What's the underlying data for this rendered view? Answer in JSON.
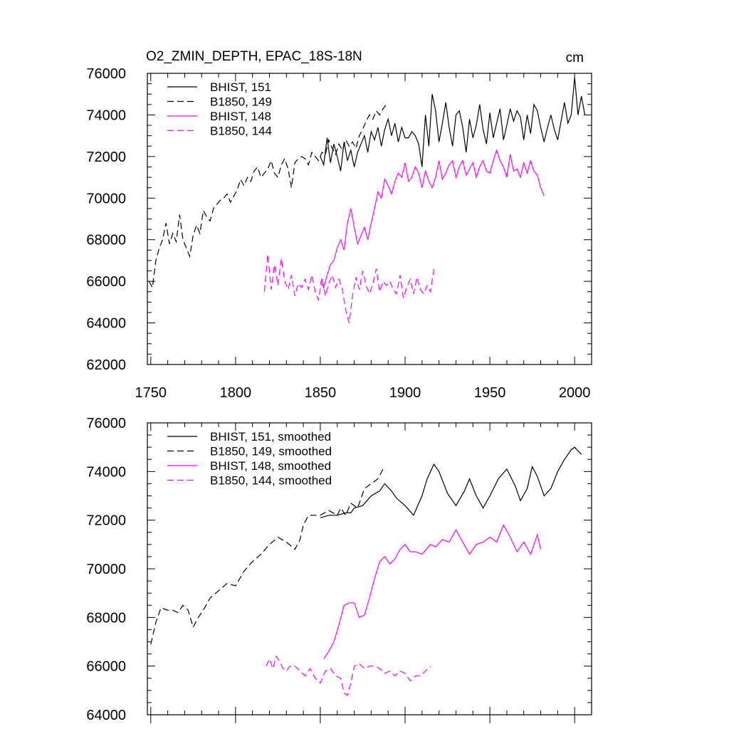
{
  "chart_data": [
    {
      "type": "line",
      "title": "O2_ZMIN_DEPTH, EPAC_18S-18N",
      "units": "cm",
      "xlim": [
        1748,
        2010
      ],
      "ylim": [
        62000,
        76000
      ],
      "x_ticks": [
        1750,
        1800,
        1850,
        1900,
        1950,
        2000
      ],
      "x_tick_labels": [
        "1750",
        "1800",
        "1850",
        "1900",
        "1950",
        "2000"
      ],
      "y_ticks": [
        62000,
        64000,
        66000,
        68000,
        70000,
        72000,
        74000,
        76000
      ],
      "y_tick_labels": [
        "62000",
        "64000",
        "66000",
        "68000",
        "70000",
        "72000",
        "74000",
        "76000"
      ],
      "legend": [
        "BHIST, 151",
        "B1850, 149",
        "BHIST, 148",
        "B1850, 144"
      ],
      "series": [
        {
          "name": "BHIST, 151",
          "color": "#000000",
          "dashed": false,
          "x": [
            1850,
            1852,
            1854,
            1856,
            1858,
            1860,
            1862,
            1864,
            1866,
            1868,
            1870,
            1872,
            1874,
            1876,
            1878,
            1880,
            1882,
            1884,
            1886,
            1888,
            1890,
            1892,
            1894,
            1896,
            1898,
            1900,
            1902,
            1904,
            1906,
            1908,
            1910,
            1912,
            1914,
            1916,
            1918,
            1920,
            1922,
            1924,
            1926,
            1928,
            1930,
            1932,
            1934,
            1936,
            1938,
            1940,
            1942,
            1944,
            1946,
            1948,
            1950,
            1952,
            1954,
            1956,
            1958,
            1960,
            1962,
            1964,
            1966,
            1968,
            1970,
            1972,
            1974,
            1976,
            1978,
            1980,
            1982,
            1984,
            1986,
            1988,
            1990,
            1992,
            1994,
            1996,
            1998,
            2000,
            2002,
            2004,
            2006
          ],
          "values": [
            72000,
            71600,
            72900,
            71700,
            72600,
            72000,
            71300,
            72700,
            71800,
            72300,
            71500,
            72200,
            72600,
            73000,
            72200,
            73200,
            72800,
            73400,
            72500,
            73300,
            73800,
            73000,
            73600,
            72700,
            73400,
            72900,
            72900,
            73200,
            73000,
            72600,
            71500,
            74000,
            72500,
            75000,
            74200,
            72700,
            73600,
            74600,
            73400,
            72500,
            74000,
            74200,
            73400,
            72200,
            73800,
            72900,
            73500,
            74500,
            73300,
            72600,
            74100,
            72900,
            73600,
            74300,
            72800,
            73500,
            74300,
            73700,
            74200,
            73900,
            72800,
            74000,
            73100,
            74500,
            74200,
            73400,
            72700,
            73400,
            74000,
            73300,
            72800,
            73700,
            74600,
            73600,
            74000,
            75800,
            74000,
            74900,
            74000
          ]
        },
        {
          "name": "B1850, 149",
          "color": "#000000",
          "dashed": true,
          "x": [
            1749,
            1751,
            1753,
            1755,
            1757,
            1759,
            1761,
            1763,
            1765,
            1767,
            1769,
            1771,
            1773,
            1775,
            1777,
            1779,
            1781,
            1783,
            1785,
            1787,
            1789,
            1791,
            1793,
            1795,
            1797,
            1799,
            1801,
            1803,
            1805,
            1807,
            1809,
            1811,
            1813,
            1815,
            1817,
            1819,
            1821,
            1823,
            1825,
            1827,
            1829,
            1831,
            1833,
            1835,
            1837,
            1839,
            1841,
            1843,
            1845,
            1847,
            1849,
            1851,
            1853,
            1855,
            1857,
            1859,
            1861,
            1863,
            1865,
            1867,
            1869,
            1871,
            1873,
            1875,
            1877,
            1879,
            1881,
            1883,
            1885,
            1887,
            1889
          ],
          "values": [
            66000,
            65700,
            67000,
            67600,
            68000,
            68800,
            67800,
            68300,
            67900,
            69200,
            68000,
            67600,
            67200,
            68200,
            68700,
            68300,
            69400,
            69100,
            68900,
            69500,
            69700,
            69900,
            70000,
            70200,
            69800,
            70100,
            70400,
            70900,
            70600,
            71000,
            70800,
            71300,
            71500,
            71000,
            71200,
            71400,
            71800,
            71200,
            71000,
            71600,
            71900,
            71400,
            70500,
            71700,
            71900,
            72000,
            71900,
            71600,
            72200,
            72000,
            71800,
            72200,
            72100,
            72800,
            72400,
            72100,
            72600,
            72300,
            72800,
            72500,
            72700,
            72400,
            73000,
            73300,
            73700,
            74000,
            73800,
            74200,
            74000,
            74300,
            74500
          ]
        },
        {
          "name": "BHIST, 148",
          "color": "#ff00ff",
          "dashed": false,
          "x": [
            1850,
            1852,
            1854,
            1856,
            1858,
            1860,
            1862,
            1864,
            1866,
            1868,
            1870,
            1872,
            1874,
            1876,
            1878,
            1880,
            1882,
            1884,
            1886,
            1888,
            1890,
            1892,
            1894,
            1896,
            1898,
            1900,
            1902,
            1904,
            1906,
            1908,
            1910,
            1912,
            1914,
            1916,
            1918,
            1920,
            1922,
            1924,
            1926,
            1928,
            1930,
            1932,
            1934,
            1936,
            1938,
            1940,
            1942,
            1944,
            1946,
            1948,
            1950,
            1952,
            1954,
            1956,
            1958,
            1960,
            1962,
            1964,
            1966,
            1968,
            1970,
            1972,
            1974,
            1976,
            1978,
            1980,
            1982
          ],
          "values": [
            66000,
            65700,
            66300,
            66800,
            67000,
            67600,
            68000,
            67500,
            68800,
            69500,
            68600,
            67800,
            68200,
            68600,
            68000,
            68800,
            69500,
            70300,
            70000,
            70900,
            70600,
            70200,
            70800,
            71200,
            71000,
            71700,
            70800,
            71000,
            71500,
            71200,
            70500,
            71300,
            70800,
            70500,
            71000,
            71800,
            70900,
            71200,
            71600,
            71800,
            71000,
            71500,
            71800,
            71100,
            71400,
            71700,
            71000,
            71500,
            71800,
            71300,
            71200,
            71800,
            72300,
            71800,
            71500,
            71000,
            72100,
            71300,
            71400,
            71000,
            71700,
            71200,
            71800,
            71300,
            71100,
            70500,
            70100
          ]
        },
        {
          "name": "B1850, 144",
          "color": "#ff00ff",
          "dashed": true,
          "x": [
            1817,
            1819,
            1821,
            1823,
            1825,
            1827,
            1829,
            1831,
            1833,
            1835,
            1837,
            1839,
            1841,
            1843,
            1845,
            1847,
            1849,
            1851,
            1853,
            1855,
            1857,
            1859,
            1861,
            1863,
            1865,
            1867,
            1869,
            1871,
            1873,
            1875,
            1877,
            1879,
            1881,
            1883,
            1885,
            1887,
            1889,
            1891,
            1893,
            1895,
            1897,
            1899,
            1901,
            1903,
            1905,
            1907,
            1909,
            1911,
            1913,
            1915,
            1917
          ],
          "values": [
            65500,
            67300,
            65600,
            66800,
            65800,
            67100,
            66000,
            65600,
            66300,
            65300,
            65900,
            65700,
            66100,
            65600,
            66300,
            65500,
            65100,
            66200,
            65300,
            65900,
            66300,
            65700,
            66100,
            65600,
            64600,
            64000,
            65300,
            66200,
            65600,
            66500,
            65800,
            65400,
            65900,
            66600,
            65500,
            66000,
            65800,
            66000,
            65600,
            65400,
            66300,
            65200,
            65700,
            66100,
            65400,
            66200,
            65600,
            65400,
            65800,
            65500,
            66600
          ]
        }
      ]
    },
    {
      "type": "line",
      "title": "",
      "xlim": [
        1748,
        2010
      ],
      "ylim": [
        64000,
        76000
      ],
      "y_ticks": [
        64000,
        66000,
        68000,
        70000,
        72000,
        74000,
        76000
      ],
      "y_tick_labels": [
        "64000",
        "66000",
        "68000",
        "70000",
        "72000",
        "74000",
        "76000"
      ],
      "legend": [
        "BHIST, 151, smoothed",
        "B1850, 149, smoothed",
        "BHIST, 148, smoothed",
        "B1850, 144, smoothed"
      ],
      "series": [
        {
          "name": "BHIST, 151, smoothed",
          "color": "#000000",
          "dashed": false,
          "x": [
            1850,
            1855,
            1860,
            1865,
            1868,
            1870,
            1875,
            1880,
            1885,
            1888,
            1892,
            1895,
            1900,
            1905,
            1910,
            1913,
            1917,
            1920,
            1925,
            1930,
            1935,
            1938,
            1942,
            1946,
            1950,
            1955,
            1960,
            1965,
            1968,
            1972,
            1975,
            1978,
            1982,
            1986,
            1990,
            1994,
            1998,
            2000,
            2004
          ],
          "values": [
            72100,
            72200,
            72200,
            72300,
            72300,
            72500,
            72600,
            73000,
            73200,
            73500,
            73200,
            72900,
            72600,
            72200,
            73000,
            73700,
            74300,
            74000,
            73100,
            72600,
            73200,
            73700,
            73000,
            72500,
            73000,
            73700,
            74100,
            73400,
            72800,
            73300,
            74200,
            73800,
            73000,
            73300,
            74000,
            74500,
            74900,
            75000,
            74700
          ]
        },
        {
          "name": "B1850, 149, smoothed",
          "color": "#000000",
          "dashed": true,
          "x": [
            1750,
            1753,
            1756,
            1760,
            1763,
            1766,
            1769,
            1772,
            1775,
            1778,
            1781,
            1785,
            1790,
            1795,
            1800,
            1805,
            1810,
            1815,
            1820,
            1825,
            1830,
            1835,
            1838,
            1840,
            1843,
            1846,
            1850,
            1855,
            1860,
            1862,
            1865,
            1868,
            1872,
            1876,
            1880,
            1884,
            1887
          ],
          "values": [
            66900,
            67800,
            68400,
            68300,
            68300,
            68200,
            68500,
            68300,
            67600,
            68000,
            68300,
            68800,
            69100,
            69400,
            69300,
            69900,
            70300,
            70600,
            71000,
            71300,
            71100,
            70800,
            71200,
            71800,
            72200,
            72200,
            72200,
            72400,
            72200,
            72500,
            72200,
            72700,
            72500,
            73300,
            73500,
            73700,
            74100
          ]
        },
        {
          "name": "BHIST, 148, smoothed",
          "color": "#ff00ff",
          "dashed": false,
          "x": [
            1852,
            1855,
            1858,
            1861,
            1864,
            1867,
            1870,
            1873,
            1876,
            1879,
            1882,
            1885,
            1888,
            1891,
            1894,
            1897,
            1900,
            1903,
            1906,
            1910,
            1915,
            1918,
            1922,
            1926,
            1930,
            1934,
            1938,
            1942,
            1946,
            1950,
            1954,
            1958,
            1962,
            1966,
            1970,
            1974,
            1978,
            1980
          ],
          "values": [
            66300,
            66600,
            67000,
            67700,
            68500,
            68600,
            68600,
            68000,
            68100,
            68800,
            69600,
            70300,
            70500,
            70200,
            70400,
            70800,
            71000,
            70700,
            70700,
            70600,
            71000,
            70900,
            71200,
            71100,
            71600,
            71100,
            70600,
            71000,
            71100,
            71300,
            71100,
            71800,
            71300,
            70700,
            71100,
            70600,
            71400,
            70800
          ]
        },
        {
          "name": "B1850, 144, smoothed",
          "color": "#ff00ff",
          "dashed": true,
          "x": [
            1818,
            1820,
            1822,
            1824,
            1826,
            1828,
            1830,
            1832,
            1835,
            1838,
            1841,
            1844,
            1847,
            1850,
            1853,
            1856,
            1859,
            1862,
            1864,
            1866,
            1868,
            1870,
            1873,
            1876,
            1879,
            1882,
            1885,
            1888,
            1891,
            1894,
            1897,
            1900,
            1903,
            1906,
            1909,
            1912,
            1915
          ],
          "values": [
            66000,
            66300,
            65900,
            66400,
            66200,
            65900,
            65800,
            66000,
            66000,
            65800,
            65600,
            65900,
            65500,
            65300,
            65800,
            65900,
            65600,
            65500,
            64900,
            64800,
            65300,
            66000,
            66100,
            65900,
            66000,
            66000,
            65900,
            65700,
            65800,
            65600,
            65800,
            65700,
            65400,
            65600,
            65600,
            65800,
            66000
          ]
        }
      ]
    }
  ]
}
